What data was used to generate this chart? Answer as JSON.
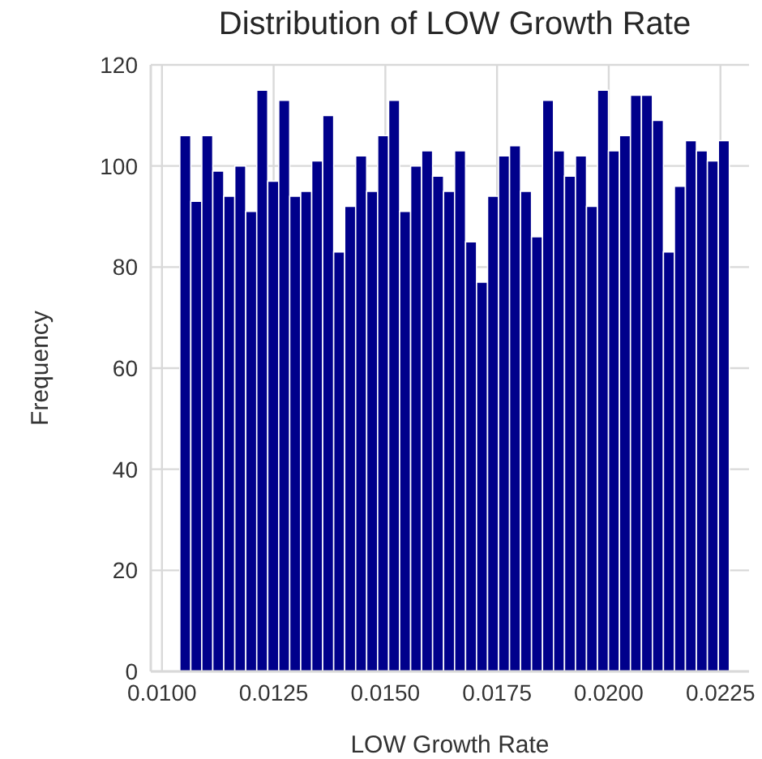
{
  "chart_data": {
    "type": "histogram",
    "title": "Distribution of LOW Growth Rate",
    "xlabel": "LOW Growth Rate",
    "ylabel": "Frequency",
    "bins": [
      0.0104,
      0.010646,
      0.010892,
      0.011138,
      0.011384,
      0.01163,
      0.011876,
      0.012122,
      0.012368,
      0.012614,
      0.01286,
      0.013106,
      0.013352,
      0.013598,
      0.013844,
      0.01409,
      0.014336,
      0.014582,
      0.014828,
      0.015074,
      0.01532,
      0.015566,
      0.015812,
      0.016058,
      0.016304,
      0.01655,
      0.016796,
      0.017042,
      0.017288,
      0.017534,
      0.01778,
      0.018026,
      0.018272,
      0.018518,
      0.018764,
      0.01901,
      0.019256,
      0.019502,
      0.019748,
      0.019994,
      0.02024,
      0.020486,
      0.020732,
      0.020978,
      0.021224,
      0.02147,
      0.021716,
      0.021962,
      0.022208,
      0.022454,
      0.0227
    ],
    "values": [
      106,
      93,
      106,
      99,
      94,
      100,
      91,
      115,
      97,
      113,
      94,
      95,
      101,
      110,
      83,
      92,
      102,
      95,
      106,
      113,
      91,
      100,
      103,
      98,
      95,
      103,
      85,
      77,
      94,
      102,
      104,
      95,
      86,
      113,
      103,
      98,
      102,
      92,
      115,
      103,
      106,
      114,
      114,
      109,
      83,
      96,
      105,
      103,
      101,
      105
    ],
    "color": "#00008b",
    "xlim": [
      0.00975,
      0.02314
    ],
    "xticks": [
      {
        "value": 0.01,
        "label": "0.0100"
      },
      {
        "value": 0.0125,
        "label": "0.0125"
      },
      {
        "value": 0.015,
        "label": "0.0150"
      },
      {
        "value": 0.0175,
        "label": "0.0175"
      },
      {
        "value": 0.02,
        "label": "0.0200"
      },
      {
        "value": 0.0225,
        "label": "0.0225"
      }
    ],
    "ylim": [
      0,
      120
    ],
    "yticks": [
      0,
      20,
      40,
      60,
      80,
      100,
      120
    ],
    "grid": true
  }
}
